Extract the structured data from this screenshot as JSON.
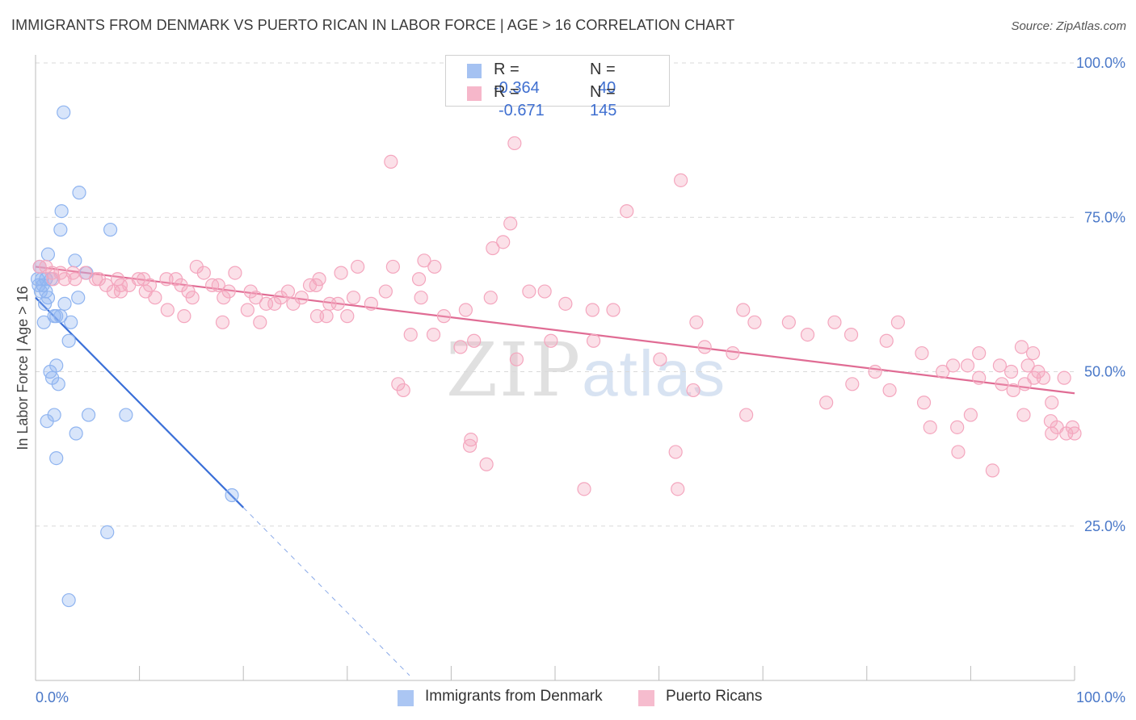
{
  "title": "IMMIGRANTS FROM DENMARK VS PUERTO RICAN IN LABOR FORCE | AGE > 16 CORRELATION CHART",
  "source": "Source: ZipAtlas.com",
  "watermark": {
    "zip": "ZIP",
    "atlas": "atlas"
  },
  "legend_top": [
    {
      "r_label": "R =",
      "r_value": "-0.364",
      "n_label": "N =",
      "n_value": "40",
      "color": "#8fb4f0"
    },
    {
      "r_label": "R =",
      "r_value": "-0.671",
      "n_label": "N =",
      "n_value": "145",
      "color": "#f4a6be"
    }
  ],
  "legend_bottom": [
    "Immigrants from Denmark",
    "Puerto Ricans"
  ],
  "chart_data": {
    "type": "scatter",
    "ylabel": "In Labor Force | Age > 16",
    "xlabel": "",
    "x_ticks": [
      "0.0%",
      "100.0%"
    ],
    "y_ticks": [
      "100.0%",
      "75.0%",
      "50.0%",
      "25.0%"
    ],
    "xlim": [
      0,
      100
    ],
    "ylim": [
      0,
      100
    ],
    "grid": "horizontal dashed",
    "series": [
      {
        "name": "Immigrants from Denmark",
        "color": "#8fb4f0",
        "line_color": "#3a6fd8",
        "trend": {
          "x0": 0,
          "y0": 62.0,
          "x1": 20,
          "y1": 28.0,
          "dash_to_x": 36
        },
        "points": [
          [
            2.7,
            92
          ],
          [
            4.2,
            79
          ],
          [
            2.5,
            76
          ],
          [
            2.4,
            73
          ],
          [
            7.2,
            73
          ],
          [
            1.2,
            69
          ],
          [
            3.8,
            68
          ],
          [
            4.9,
            66
          ],
          [
            0.4,
            67
          ],
          [
            1.0,
            65
          ],
          [
            0.3,
            64
          ],
          [
            0.7,
            64
          ],
          [
            1.5,
            65
          ],
          [
            0.5,
            63
          ],
          [
            4.1,
            62
          ],
          [
            0.9,
            61
          ],
          [
            2.8,
            61
          ],
          [
            1.8,
            59
          ],
          [
            2.0,
            59
          ],
          [
            3.4,
            58
          ],
          [
            0.8,
            58
          ],
          [
            3.2,
            55
          ],
          [
            2.0,
            51
          ],
          [
            1.4,
            50
          ],
          [
            1.6,
            49
          ],
          [
            2.2,
            48
          ],
          [
            1.8,
            43
          ],
          [
            5.1,
            43
          ],
          [
            1.1,
            42
          ],
          [
            8.7,
            43
          ],
          [
            3.9,
            40
          ],
          [
            2.0,
            36
          ],
          [
            18.9,
            30
          ],
          [
            6.9,
            24
          ],
          [
            3.2,
            13
          ],
          [
            0.6,
            65
          ],
          [
            1.2,
            62
          ],
          [
            0.2,
            65
          ],
          [
            2.4,
            59
          ],
          [
            1.0,
            63
          ]
        ]
      },
      {
        "name": "Puerto Ricans",
        "color": "#f4a6be",
        "line_color": "#e06c94",
        "trend": {
          "x0": 0,
          "y0": 67.0,
          "x1": 100,
          "y1": 46.5
        },
        "points": [
          [
            46.1,
            87
          ],
          [
            34.2,
            84
          ],
          [
            62.1,
            81
          ],
          [
            56.9,
            76
          ],
          [
            45.7,
            74
          ],
          [
            45.0,
            71
          ],
          [
            44.0,
            70
          ],
          [
            37.4,
            68
          ],
          [
            38.4,
            67
          ],
          [
            34.4,
            67
          ],
          [
            31.0,
            67
          ],
          [
            15.5,
            67
          ],
          [
            1.0,
            67
          ],
          [
            0.4,
            67
          ],
          [
            16.2,
            66
          ],
          [
            19.2,
            66
          ],
          [
            29.4,
            66
          ],
          [
            1.6,
            66
          ],
          [
            2.4,
            66
          ],
          [
            3.6,
            66
          ],
          [
            4.8,
            66
          ],
          [
            6.1,
            65
          ],
          [
            7.9,
            65
          ],
          [
            9.9,
            65
          ],
          [
            10.4,
            65
          ],
          [
            12.6,
            65
          ],
          [
            13.5,
            65
          ],
          [
            1.7,
            65
          ],
          [
            2.8,
            65
          ],
          [
            3.8,
            65
          ],
          [
            5.8,
            65
          ],
          [
            8.2,
            64
          ],
          [
            11.0,
            64
          ],
          [
            14.0,
            64
          ],
          [
            17.6,
            64
          ],
          [
            26.4,
            64
          ],
          [
            27.3,
            65
          ],
          [
            36.9,
            65
          ],
          [
            6.8,
            64
          ],
          [
            9.0,
            64
          ],
          [
            14.7,
            63
          ],
          [
            17.0,
            64
          ],
          [
            18.6,
            63
          ],
          [
            20.7,
            63
          ],
          [
            24.3,
            63
          ],
          [
            27.0,
            64
          ],
          [
            33.7,
            63
          ],
          [
            47.5,
            63
          ],
          [
            49.0,
            63
          ],
          [
            8.2,
            63
          ],
          [
            10.6,
            63
          ],
          [
            11.5,
            62
          ],
          [
            15.1,
            62
          ],
          [
            18.1,
            62
          ],
          [
            21.2,
            62
          ],
          [
            23.6,
            62
          ],
          [
            25.6,
            62
          ],
          [
            30.6,
            62
          ],
          [
            37.1,
            62
          ],
          [
            43.8,
            62
          ],
          [
            51.0,
            61
          ],
          [
            7.5,
            63
          ],
          [
            12.7,
            60
          ],
          [
            20.4,
            60
          ],
          [
            22.2,
            61
          ],
          [
            23.0,
            61
          ],
          [
            24.8,
            61
          ],
          [
            28.3,
            61
          ],
          [
            29.1,
            61
          ],
          [
            32.3,
            61
          ],
          [
            41.4,
            60
          ],
          [
            53.6,
            60
          ],
          [
            68.1,
            60
          ],
          [
            14.3,
            59
          ],
          [
            18.0,
            58
          ],
          [
            21.6,
            58
          ],
          [
            27.1,
            59
          ],
          [
            28.0,
            59
          ],
          [
            30.0,
            59
          ],
          [
            39.3,
            59
          ],
          [
            55.6,
            60
          ],
          [
            63.6,
            58
          ],
          [
            69.2,
            58
          ],
          [
            72.5,
            58
          ],
          [
            76.9,
            58
          ],
          [
            83.0,
            58
          ],
          [
            49.6,
            55
          ],
          [
            53.7,
            55
          ],
          [
            74.3,
            56
          ],
          [
            78.5,
            56
          ],
          [
            81.9,
            55
          ],
          [
            36.1,
            56
          ],
          [
            38.3,
            56
          ],
          [
            42.2,
            55
          ],
          [
            40.9,
            54
          ],
          [
            64.4,
            54
          ],
          [
            67.1,
            53
          ],
          [
            85.3,
            53
          ],
          [
            90.8,
            53
          ],
          [
            94.9,
            54
          ],
          [
            96.0,
            53
          ],
          [
            88.3,
            51
          ],
          [
            46.3,
            52
          ],
          [
            60.1,
            52
          ],
          [
            80.8,
            50
          ],
          [
            87.3,
            50
          ],
          [
            89.7,
            51
          ],
          [
            92.8,
            51
          ],
          [
            95.5,
            51
          ],
          [
            93.9,
            50
          ],
          [
            96.5,
            50
          ],
          [
            99.0,
            49
          ],
          [
            90.8,
            49
          ],
          [
            93.0,
            48
          ],
          [
            94.1,
            47
          ],
          [
            95.2,
            48
          ],
          [
            96.1,
            49
          ],
          [
            97.0,
            49
          ],
          [
            34.9,
            48
          ],
          [
            78.6,
            48
          ],
          [
            82.2,
            47
          ],
          [
            85.5,
            45
          ],
          [
            63.3,
            47
          ],
          [
            35.4,
            47
          ],
          [
            90.0,
            43
          ],
          [
            97.8,
            45
          ],
          [
            68.4,
            43
          ],
          [
            95.1,
            43
          ],
          [
            76.1,
            45
          ],
          [
            97.7,
            42
          ],
          [
            88.7,
            41
          ],
          [
            98.3,
            41
          ],
          [
            99.2,
            40
          ],
          [
            100.0,
            40
          ],
          [
            99.8,
            41
          ],
          [
            86.1,
            41
          ],
          [
            41.9,
            39
          ],
          [
            41.8,
            38
          ],
          [
            88.8,
            37
          ],
          [
            61.6,
            37
          ],
          [
            97.8,
            40
          ],
          [
            43.4,
            35
          ],
          [
            92.1,
            34
          ],
          [
            52.8,
            31
          ],
          [
            61.8,
            31
          ]
        ]
      }
    ]
  }
}
